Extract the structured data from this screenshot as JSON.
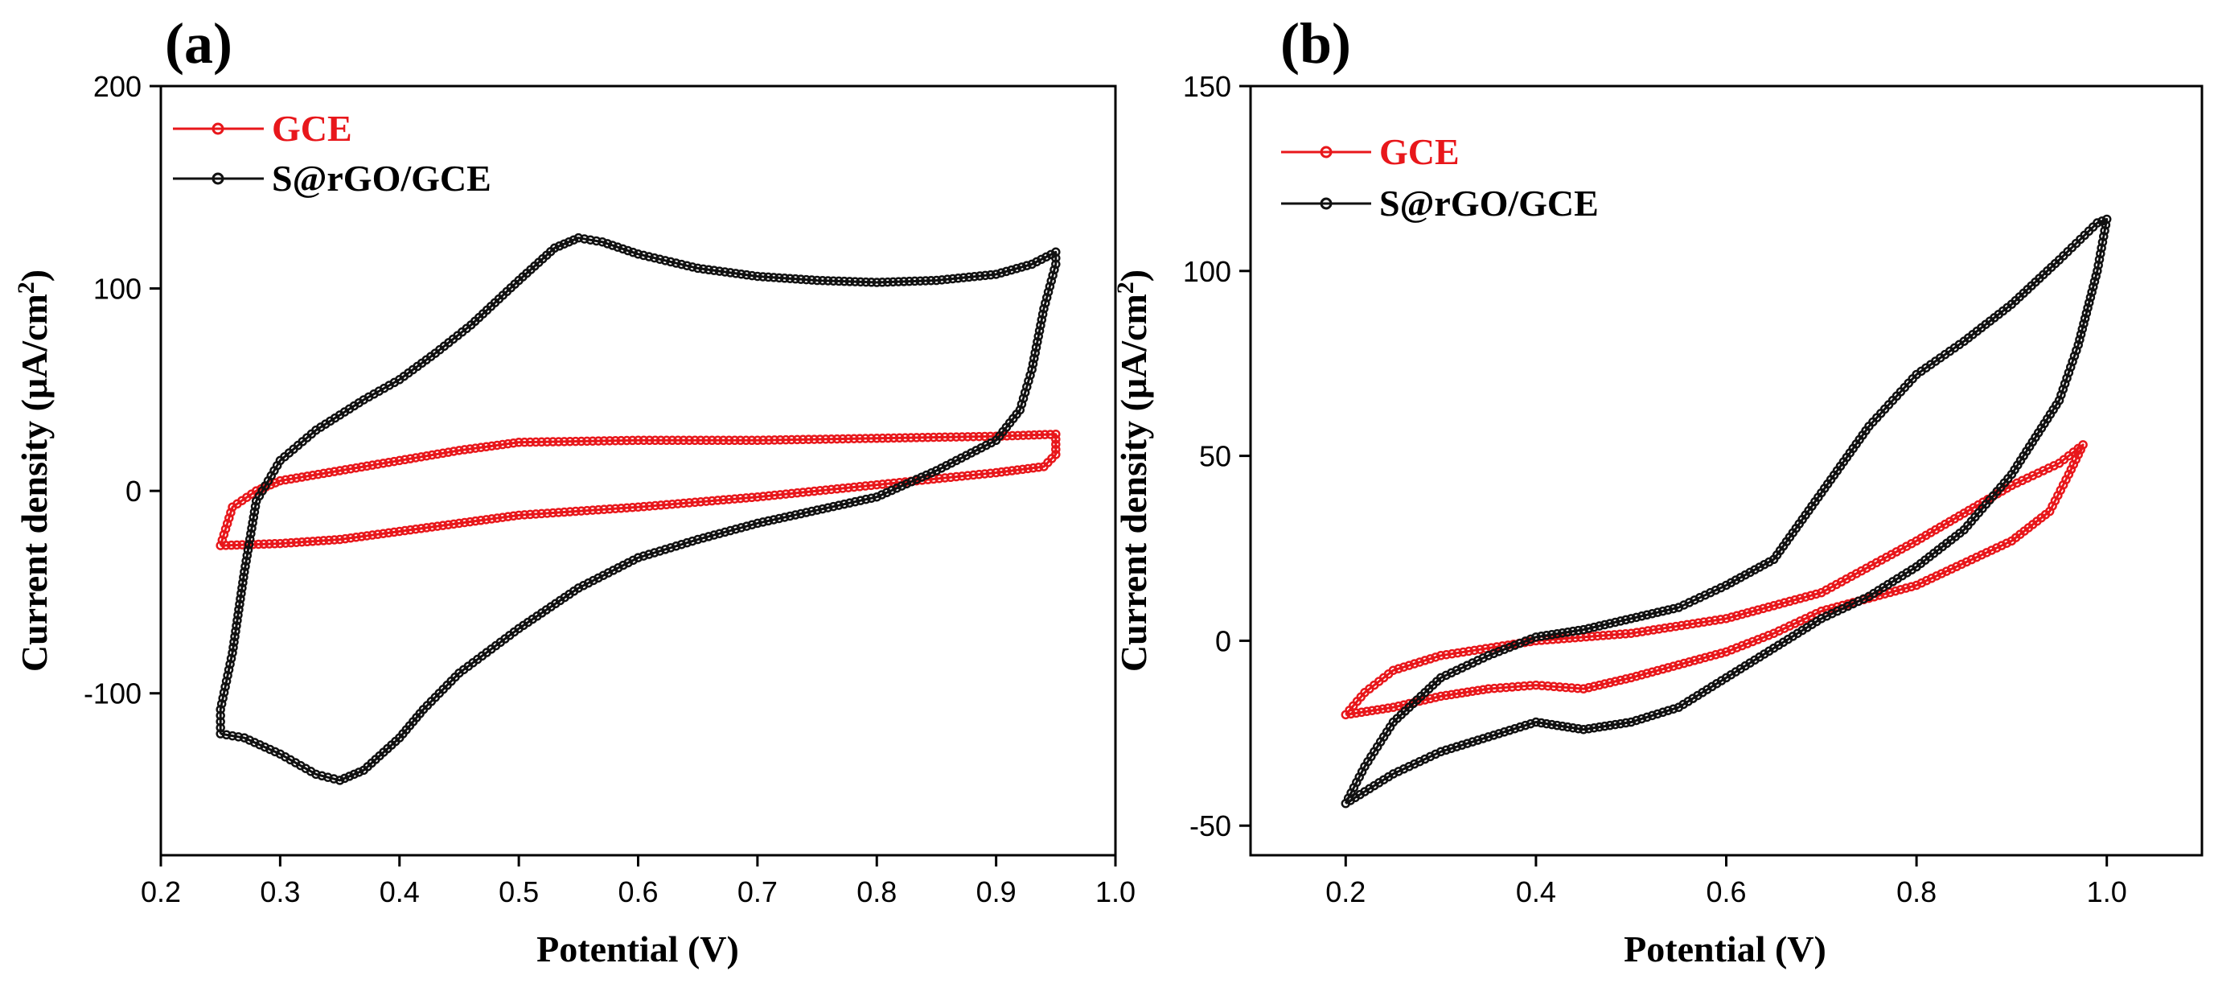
{
  "chart_data": [
    {
      "type": "line",
      "panel_label": "(a)",
      "xlabel": "Potential (V)",
      "ylabel": "Current density (μA/cm²)",
      "ylabel_main": "Current density (μA/cm",
      "ylabel_sup": "2",
      "ylabel_close": ")",
      "xlim": [
        0.2,
        1.0
      ],
      "ylim": [
        -180,
        200
      ],
      "xticks": [
        "0.2",
        "0.3",
        "0.4",
        "0.5",
        "0.6",
        "0.7",
        "0.8",
        "0.9",
        "1.0"
      ],
      "yticks": [
        "-100",
        "0",
        "100",
        "200"
      ],
      "xtick_values": [
        0.2,
        0.3,
        0.4,
        0.5,
        0.6,
        0.7,
        0.8,
        0.9,
        1.0
      ],
      "ytick_values": [
        -100,
        0,
        100,
        200
      ],
      "legend_position": "top-left",
      "series": [
        {
          "name": "GCE",
          "color": "#e8171b",
          "points": [
            [
              0.25,
              -27
            ],
            [
              0.26,
              -8
            ],
            [
              0.28,
              0
            ],
            [
              0.3,
              5
            ],
            [
              0.35,
              10
            ],
            [
              0.4,
              15
            ],
            [
              0.45,
              20
            ],
            [
              0.5,
              24
            ],
            [
              0.6,
              25
            ],
            [
              0.7,
              25
            ],
            [
              0.8,
              26
            ],
            [
              0.9,
              27
            ],
            [
              0.95,
              28
            ],
            [
              0.95,
              18
            ],
            [
              0.94,
              12
            ],
            [
              0.9,
              9
            ],
            [
              0.8,
              3
            ],
            [
              0.7,
              -3
            ],
            [
              0.6,
              -8
            ],
            [
              0.5,
              -12
            ],
            [
              0.45,
              -16
            ],
            [
              0.4,
              -20
            ],
            [
              0.35,
              -24
            ],
            [
              0.3,
              -26
            ],
            [
              0.25,
              -27
            ]
          ]
        },
        {
          "name": "S@rGO/GCE",
          "color": "#111111",
          "points": [
            [
              0.25,
              -120
            ],
            [
              0.25,
              -108
            ],
            [
              0.26,
              -80
            ],
            [
              0.27,
              -40
            ],
            [
              0.28,
              -5
            ],
            [
              0.3,
              15
            ],
            [
              0.33,
              30
            ],
            [
              0.37,
              45
            ],
            [
              0.4,
              55
            ],
            [
              0.43,
              68
            ],
            [
              0.46,
              82
            ],
            [
              0.5,
              104
            ],
            [
              0.53,
              120
            ],
            [
              0.55,
              125
            ],
            [
              0.57,
              123
            ],
            [
              0.6,
              117
            ],
            [
              0.65,
              110
            ],
            [
              0.7,
              106
            ],
            [
              0.75,
              104
            ],
            [
              0.8,
              103
            ],
            [
              0.85,
              104
            ],
            [
              0.9,
              107
            ],
            [
              0.93,
              112
            ],
            [
              0.95,
              118
            ],
            [
              0.95,
              112
            ],
            [
              0.94,
              90
            ],
            [
              0.93,
              60
            ],
            [
              0.92,
              40
            ],
            [
              0.9,
              25
            ],
            [
              0.85,
              10
            ],
            [
              0.8,
              -3
            ],
            [
              0.7,
              -16
            ],
            [
              0.65,
              -24
            ],
            [
              0.6,
              -33
            ],
            [
              0.55,
              -48
            ],
            [
              0.5,
              -68
            ],
            [
              0.45,
              -90
            ],
            [
              0.42,
              -108
            ],
            [
              0.4,
              -122
            ],
            [
              0.37,
              -138
            ],
            [
              0.35,
              -143
            ],
            [
              0.33,
              -140
            ],
            [
              0.3,
              -130
            ],
            [
              0.27,
              -122
            ],
            [
              0.25,
              -120
            ]
          ]
        }
      ]
    },
    {
      "type": "line",
      "panel_label": "(b)",
      "xlabel": "Potential (V)",
      "ylabel": "Current density (μA/cm²)",
      "ylabel_main": "Current density (μA/cm",
      "ylabel_sup": "2",
      "ylabel_close": ")",
      "xlim": [
        0.1,
        1.1
      ],
      "ylim": [
        -58,
        150
      ],
      "xticks": [
        "0.2",
        "0.4",
        "0.6",
        "0.8",
        "1.0"
      ],
      "yticks": [
        "-50",
        "0",
        "50",
        "100",
        "150"
      ],
      "xtick_values": [
        0.2,
        0.4,
        0.6,
        0.8,
        1.0
      ],
      "ytick_values": [
        -50,
        0,
        50,
        100,
        150
      ],
      "legend_position": "top-left",
      "series": [
        {
          "name": "GCE",
          "color": "#e8171b",
          "points": [
            [
              0.2,
              -20
            ],
            [
              0.22,
              -14
            ],
            [
              0.25,
              -8
            ],
            [
              0.3,
              -4
            ],
            [
              0.4,
              0
            ],
            [
              0.5,
              2
            ],
            [
              0.6,
              6
            ],
            [
              0.7,
              13
            ],
            [
              0.8,
              27
            ],
            [
              0.9,
              42
            ],
            [
              0.95,
              48
            ],
            [
              0.975,
              53
            ],
            [
              0.96,
              45
            ],
            [
              0.94,
              35
            ],
            [
              0.9,
              27
            ],
            [
              0.8,
              15
            ],
            [
              0.7,
              8
            ],
            [
              0.65,
              2
            ],
            [
              0.6,
              -3
            ],
            [
              0.5,
              -10
            ],
            [
              0.45,
              -13
            ],
            [
              0.4,
              -12
            ],
            [
              0.35,
              -13
            ],
            [
              0.3,
              -15
            ],
            [
              0.25,
              -18
            ],
            [
              0.2,
              -20
            ]
          ]
        },
        {
          "name": "S@rGO/GCE",
          "color": "#111111",
          "points": [
            [
              0.2,
              -44
            ],
            [
              0.22,
              -34
            ],
            [
              0.25,
              -22
            ],
            [
              0.3,
              -10
            ],
            [
              0.35,
              -4
            ],
            [
              0.4,
              1
            ],
            [
              0.45,
              3
            ],
            [
              0.5,
              6
            ],
            [
              0.55,
              9
            ],
            [
              0.6,
              15
            ],
            [
              0.65,
              22
            ],
            [
              0.7,
              40
            ],
            [
              0.75,
              58
            ],
            [
              0.8,
              72
            ],
            [
              0.85,
              81
            ],
            [
              0.9,
              91
            ],
            [
              0.95,
              103
            ],
            [
              0.99,
              113
            ],
            [
              1.0,
              114
            ],
            [
              0.99,
              100
            ],
            [
              0.97,
              80
            ],
            [
              0.95,
              65
            ],
            [
              0.9,
              45
            ],
            [
              0.85,
              30
            ],
            [
              0.8,
              20
            ],
            [
              0.75,
              12
            ],
            [
              0.7,
              6
            ],
            [
              0.65,
              -2
            ],
            [
              0.6,
              -10
            ],
            [
              0.55,
              -18
            ],
            [
              0.5,
              -22
            ],
            [
              0.45,
              -24
            ],
            [
              0.4,
              -22
            ],
            [
              0.35,
              -26
            ],
            [
              0.3,
              -30
            ],
            [
              0.25,
              -36
            ],
            [
              0.2,
              -44
            ]
          ]
        }
      ]
    }
  ]
}
